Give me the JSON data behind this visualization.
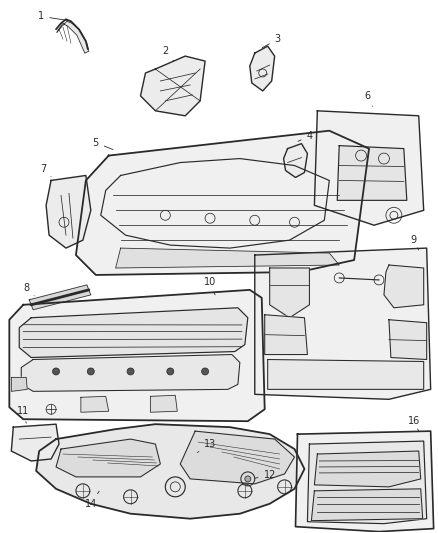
{
  "background_color": "#ffffff",
  "line_color": "#2a2a2a",
  "label_color": "#222222",
  "lw_main": 1.0,
  "lw_thin": 0.55,
  "figsize": [
    4.38,
    5.33
  ],
  "dpi": 100
}
